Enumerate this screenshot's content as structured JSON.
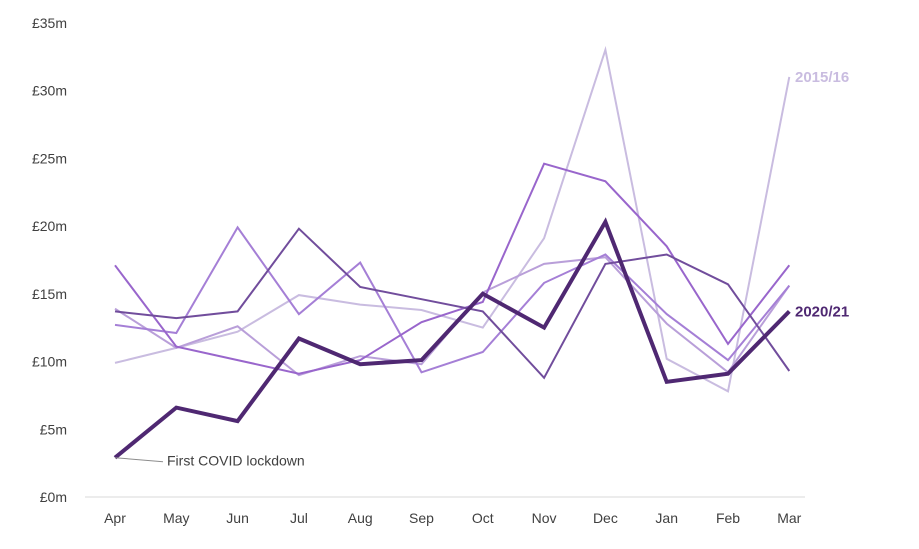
{
  "chart_data": {
    "type": "line",
    "title": "",
    "xlabel": "",
    "ylabel": "",
    "categories": [
      "Apr",
      "May",
      "Jun",
      "Jul",
      "Aug",
      "Sep",
      "Oct",
      "Nov",
      "Dec",
      "Jan",
      "Feb",
      "Mar"
    ],
    "y_tick_labels": [
      "£0m",
      "£5m",
      "£10m",
      "£15m",
      "£20m",
      "£25m",
      "£30m",
      "£35m"
    ],
    "ylim": [
      0,
      35
    ],
    "grid": false,
    "legend": "none; series labelled directly at line ends",
    "series": [
      {
        "name": "2015/16",
        "color": "#c9bce0",
        "width": 2,
        "values": [
          9.9,
          11.0,
          12.2,
          14.9,
          14.2,
          13.8,
          12.5,
          19.1,
          33.0,
          10.2,
          7.8,
          31.0
        ]
      },
      {
        "name": "",
        "color": "#b99fd9",
        "width": 2,
        "values": [
          13.9,
          11.0,
          12.6,
          9.0,
          10.4,
          9.8,
          15.1,
          17.2,
          17.7,
          12.8,
          9.2,
          15.6
        ]
      },
      {
        "name": "",
        "color": "#a57fd6",
        "width": 2,
        "values": [
          12.7,
          12.1,
          19.9,
          13.5,
          17.3,
          9.2,
          10.7,
          15.8,
          17.9,
          13.5,
          10.1,
          15.6
        ]
      },
      {
        "name": "",
        "color": "#9966cc",
        "width": 2,
        "values": [
          17.1,
          11.1,
          10.1,
          9.1,
          10.1,
          12.9,
          14.4,
          24.6,
          23.3,
          18.5,
          11.3,
          17.1
        ]
      },
      {
        "name": "",
        "color": "#714d9c",
        "width": 2,
        "values": [
          13.7,
          13.2,
          13.7,
          19.8,
          15.5,
          14.6,
          13.7,
          8.8,
          17.2,
          17.9,
          15.7,
          9.3
        ]
      },
      {
        "name": "2020/21",
        "color": "#4f2872",
        "width": 4,
        "values": [
          2.9,
          6.6,
          5.6,
          11.7,
          9.8,
          10.1,
          15.0,
          12.5,
          20.3,
          8.5,
          9.1,
          13.7
        ]
      }
    ],
    "annotations": [
      {
        "text": "First COVID lockdown",
        "category": "Apr",
        "value": 2.9
      }
    ]
  }
}
